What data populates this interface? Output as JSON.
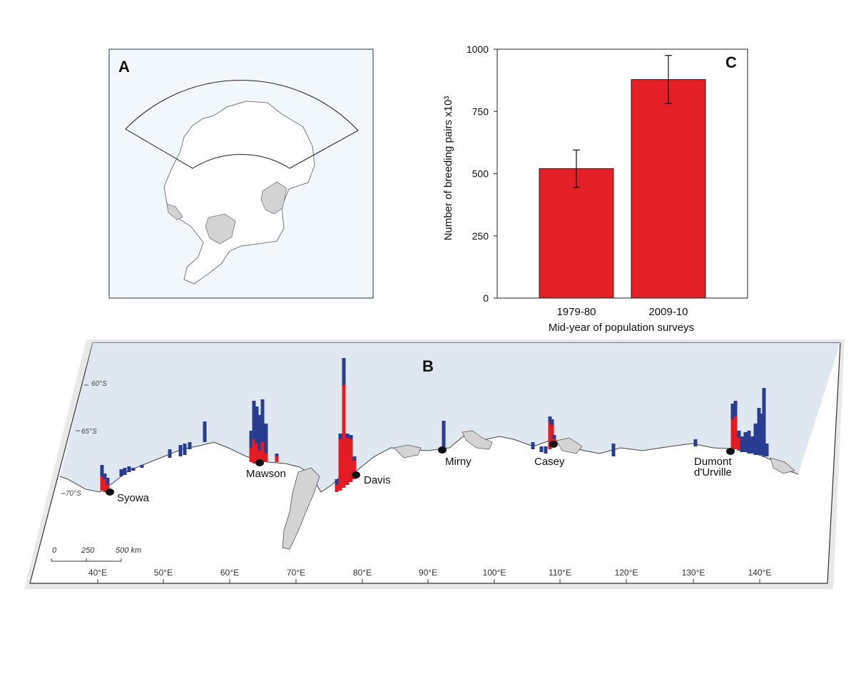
{
  "panel_a": {
    "letter": "A"
  },
  "panel_b": {
    "letter": "B",
    "lat_labels": [
      "60°S",
      "65°S",
      "70°S"
    ],
    "lon_ticks": [
      "40°E",
      "50°E",
      "60°E",
      "70°E",
      "80°E",
      "90°E",
      "100°E",
      "110°E",
      "120°E",
      "130°E",
      "140°E"
    ],
    "stations": [
      {
        "name": "Syowa"
      },
      {
        "name": "Mawson"
      },
      {
        "name": "Davis"
      },
      {
        "name": "Mirny"
      },
      {
        "name": "Casey"
      },
      {
        "name": "Dumont"
      },
      {
        "name": "d'Urville"
      }
    ],
    "scale_labels": [
      "0",
      "250",
      "500 km"
    ],
    "colors": {
      "recent": "#283d8f",
      "earlier": "#e31b23",
      "ocean": "#dfe8f1",
      "ice_shelf": "#d3d3d3"
    }
  },
  "chart_data": {
    "type": "bar",
    "panel_letter": "C",
    "categories": [
      "1979-80",
      "2009-10"
    ],
    "values": [
      520,
      878
    ],
    "error_low": [
      445,
      782
    ],
    "error_high": [
      595,
      975
    ],
    "xlabel": "Mid-year of population surveys",
    "ylabel": "Number of breeding pairs x10³",
    "ylim": [
      0,
      1000
    ],
    "yticks": [
      "0",
      "250",
      "500",
      "750",
      "1000"
    ],
    "bar_color": "#e41f26",
    "grid": false
  }
}
